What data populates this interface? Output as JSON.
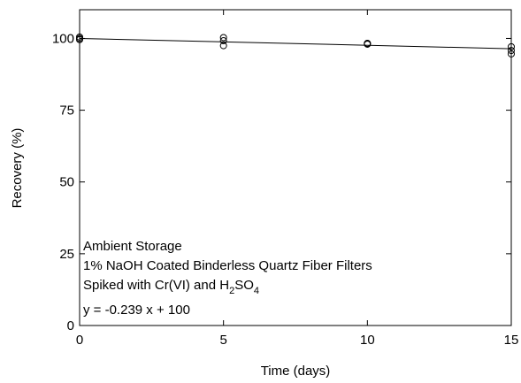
{
  "chart_data": {
    "type": "scatter",
    "xlabel": "Time (days)",
    "ylabel": "Recovery (%)",
    "xlim": [
      0,
      15
    ],
    "ylim": [
      0,
      110
    ],
    "x_ticks": [
      0,
      5,
      10,
      15
    ],
    "y_ticks": [
      0,
      25,
      50,
      75,
      100
    ],
    "grid": false,
    "series": [
      {
        "marker": "open-circle",
        "color": "#000000",
        "points": [
          {
            "x": 0,
            "y": 100.0
          },
          {
            "x": 0,
            "y": 100.5
          },
          {
            "x": 0,
            "y": 99.6
          },
          {
            "x": 5,
            "y": 100.3
          },
          {
            "x": 5,
            "y": 99.2
          },
          {
            "x": 5,
            "y": 97.5
          },
          {
            "x": 10,
            "y": 98.3
          },
          {
            "x": 10,
            "y": 98.0
          },
          {
            "x": 10,
            "y": 98.2
          },
          {
            "x": 15,
            "y": 97.1
          },
          {
            "x": 15,
            "y": 95.8
          },
          {
            "x": 15,
            "y": 94.6
          }
        ]
      }
    ],
    "fit_line": {
      "slope": -0.239,
      "intercept": 100,
      "x_range": [
        0,
        15
      ],
      "color": "#000000"
    },
    "annotation": {
      "line1": "Ambient Storage",
      "line2": "1% NaOH Coated Binderless Quartz Fiber Filters",
      "line3_prefix": "Spiked with Cr(VI) and H",
      "line3_sub1": "2",
      "line3_mid": "SO",
      "line3_sub2": "4",
      "equation": "y = -0.239 x + 100"
    }
  }
}
